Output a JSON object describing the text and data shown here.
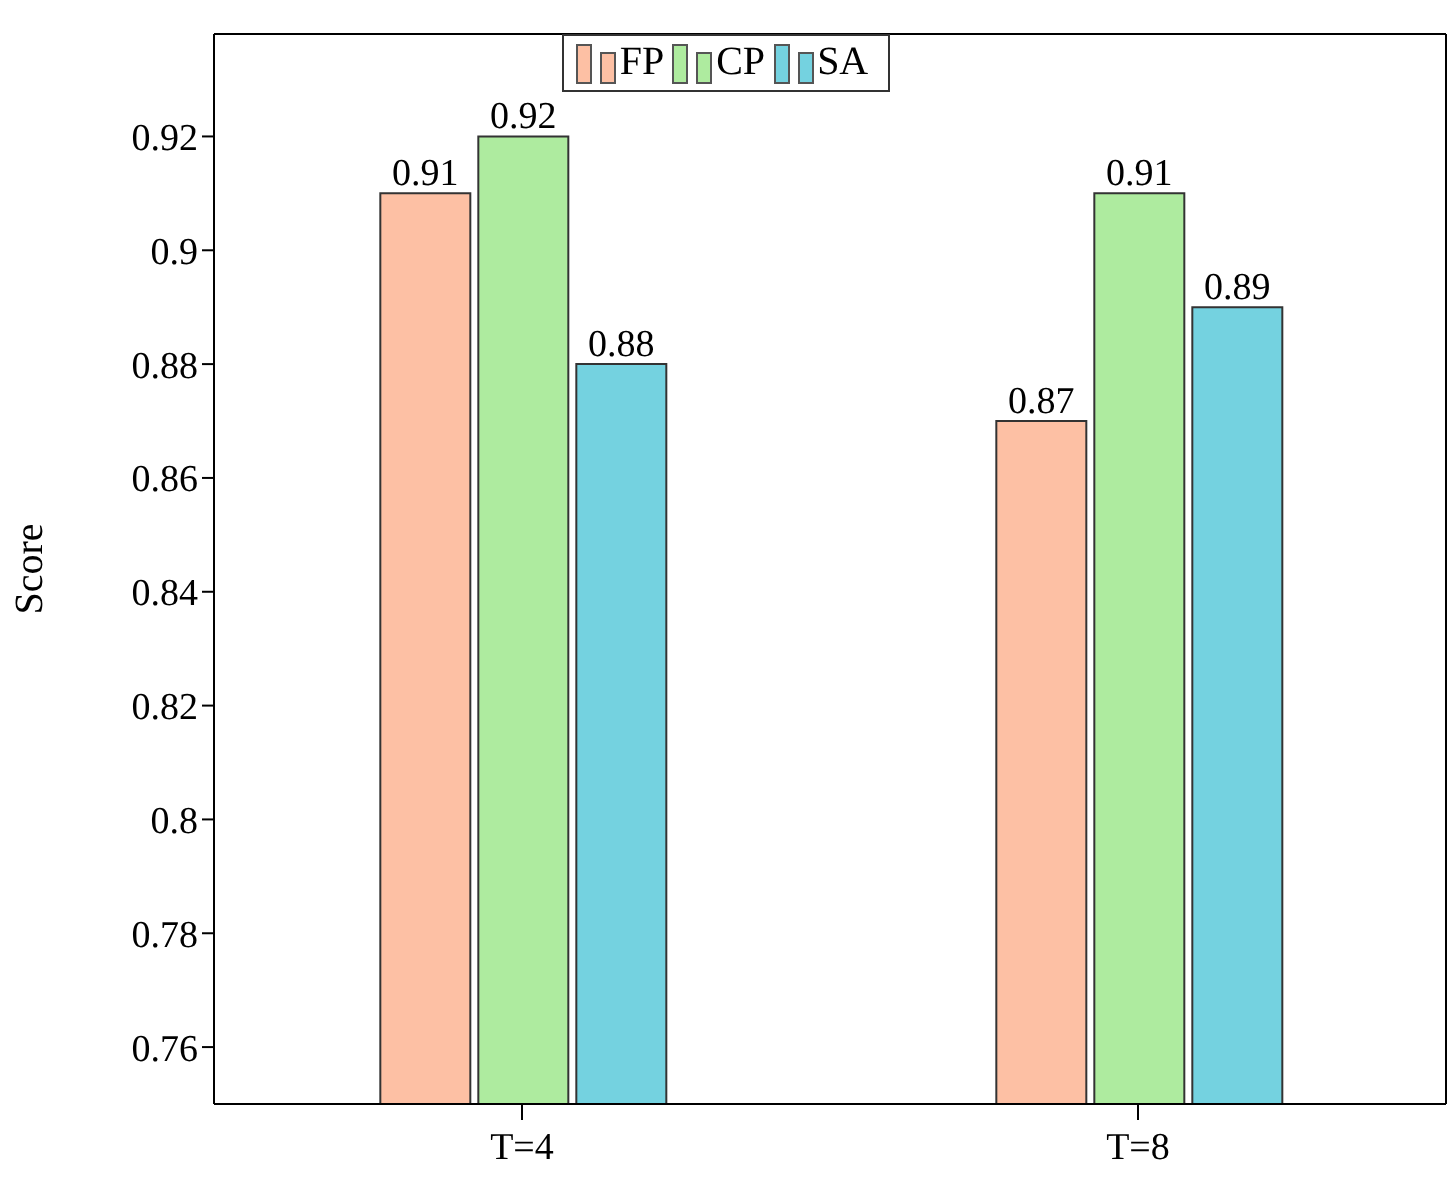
{
  "chart_data": {
    "type": "bar",
    "ylabel": "Score",
    "categories": [
      "T=4",
      "T=8"
    ],
    "series": [
      {
        "name": "FP",
        "color": "#fdc0a4",
        "values": [
          0.91,
          0.87
        ]
      },
      {
        "name": "CP",
        "color": "#aeeb9f",
        "values": [
          0.92,
          0.91
        ]
      },
      {
        "name": "SA",
        "color": "#74d2e0",
        "values": [
          0.88,
          0.89
        ]
      }
    ],
    "ylim": [
      0.75,
      0.938
    ],
    "yticks": [
      0.76,
      0.78,
      0.8,
      0.82,
      0.84,
      0.86,
      0.88,
      0.9,
      0.92
    ],
    "data_labels": true,
    "grid": false,
    "legend": "top"
  }
}
